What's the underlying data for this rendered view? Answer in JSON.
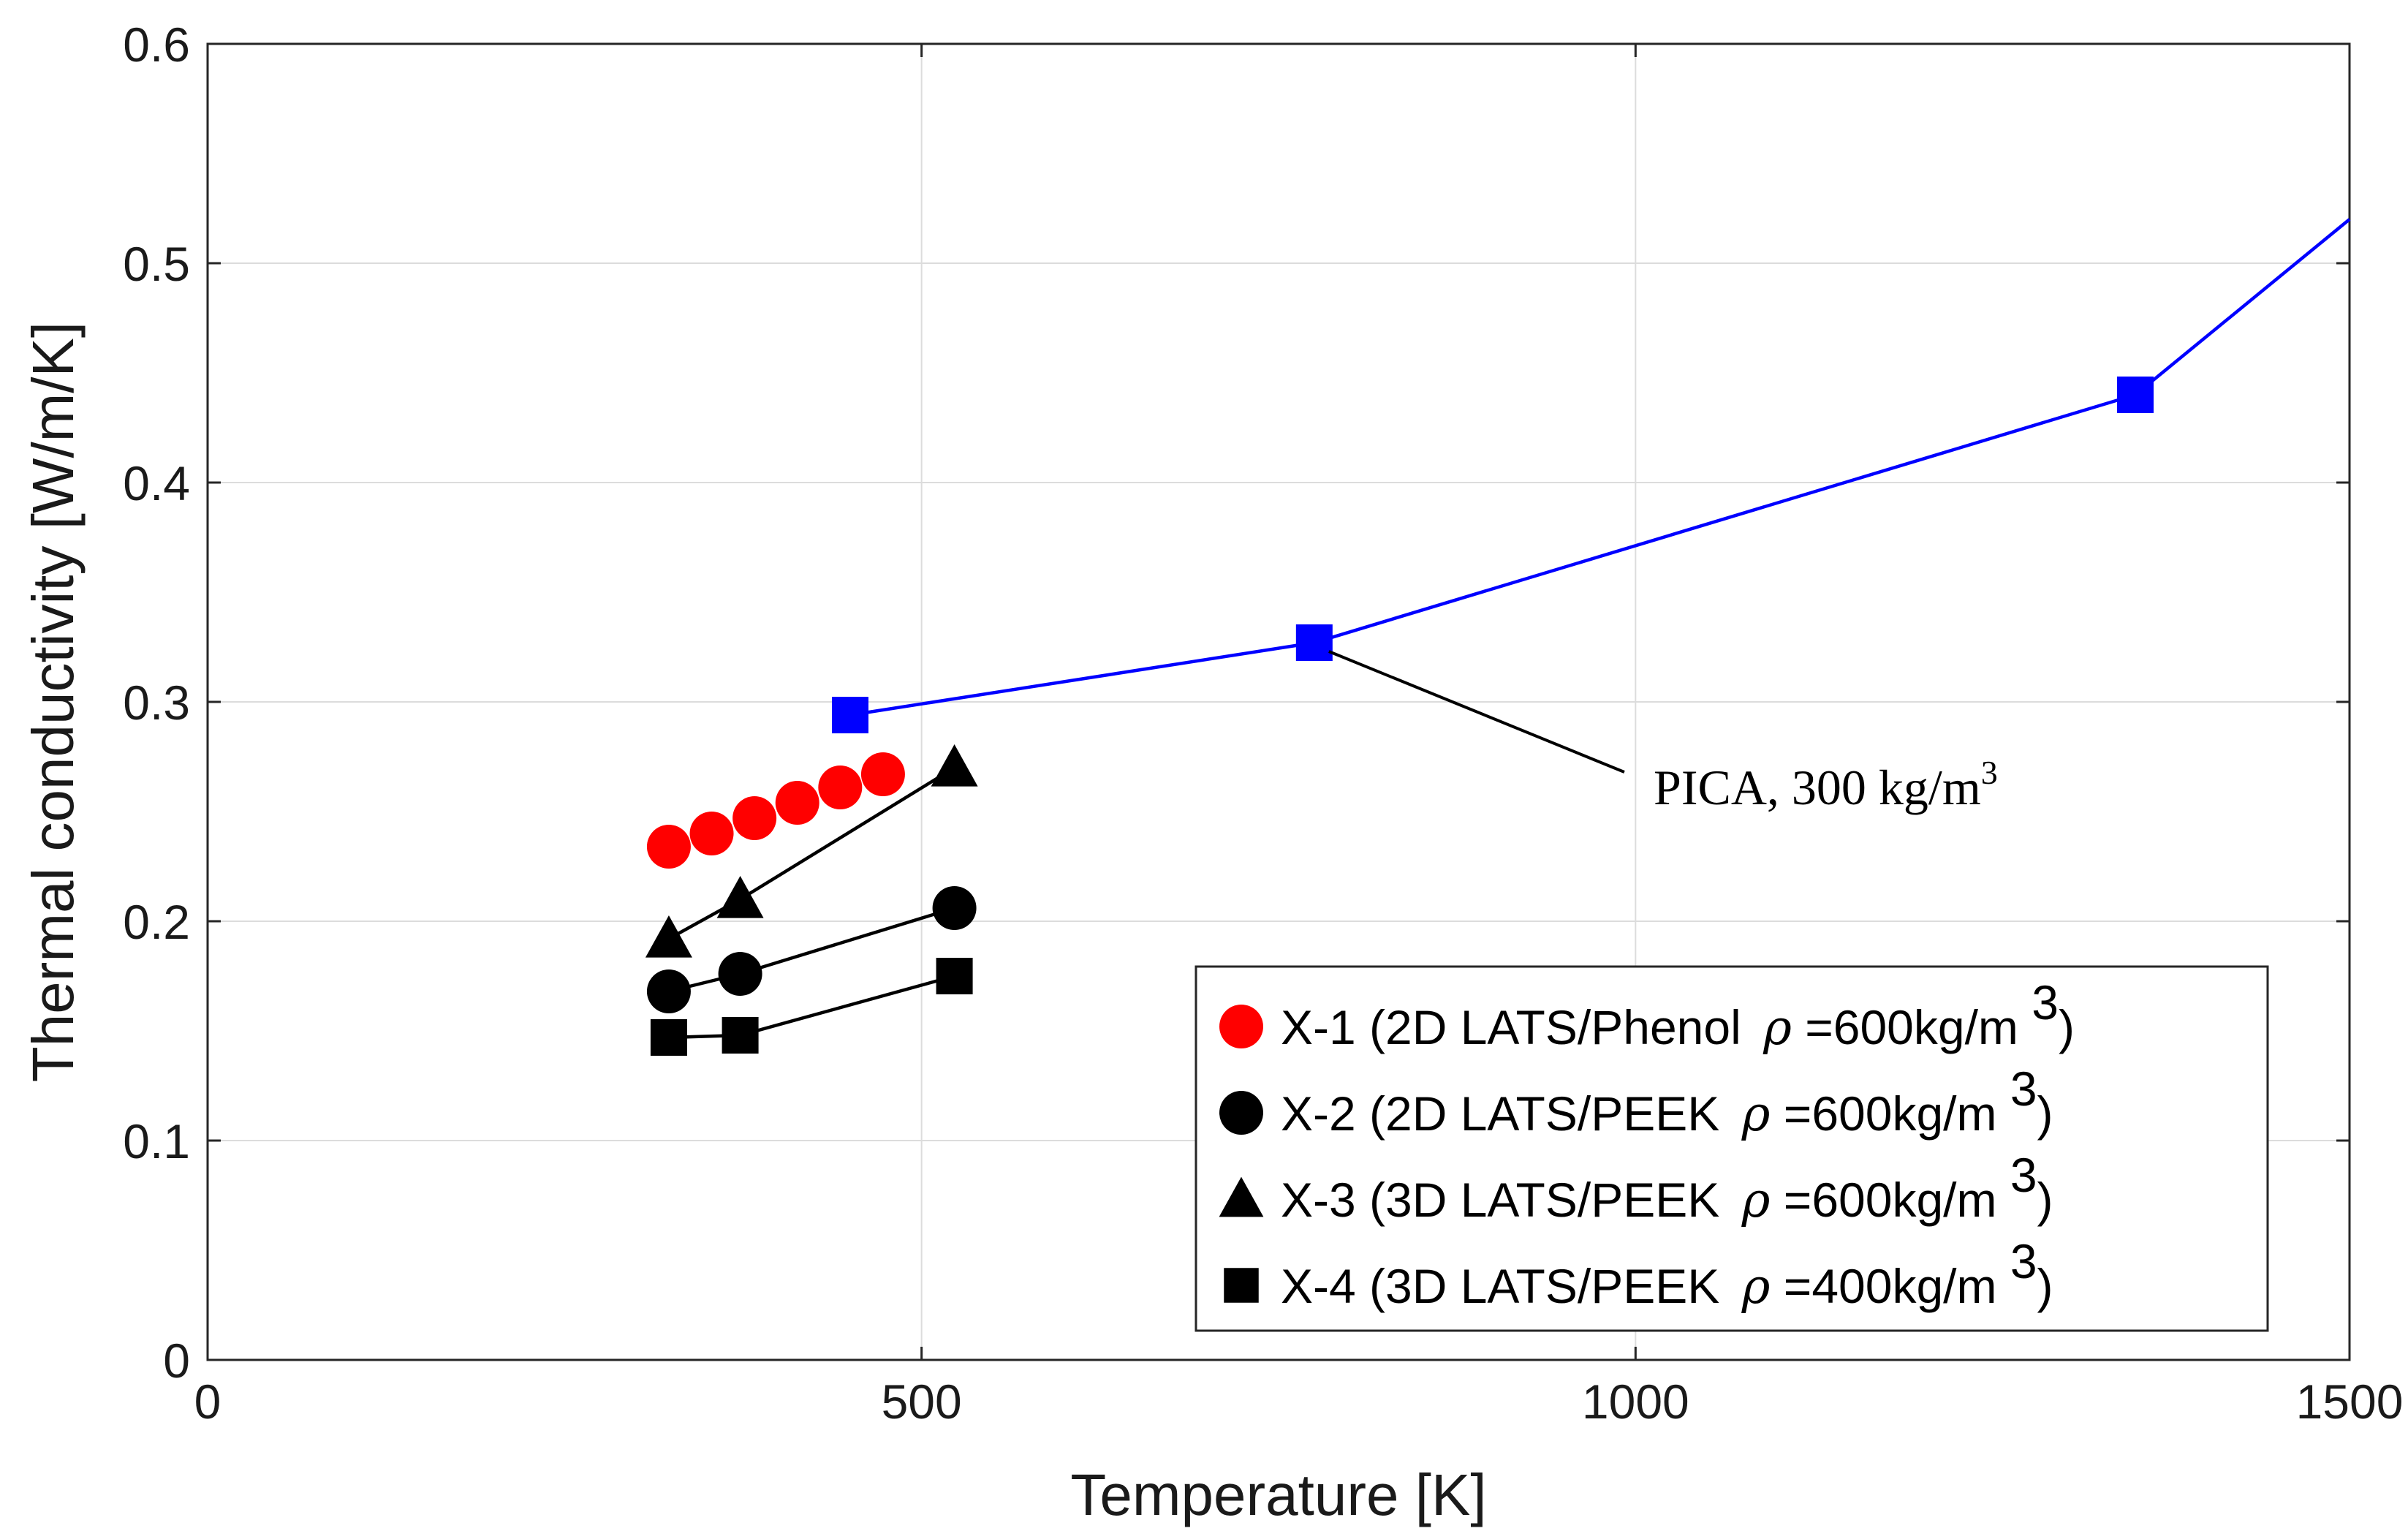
{
  "chart_data": {
    "type": "line",
    "xlabel": "Temperature [K]",
    "ylabel": "Thermal conductivity [W/m/K]",
    "xlim": [
      0,
      1500
    ],
    "ylim": [
      0,
      0.6
    ],
    "x_ticks": [
      0,
      500,
      1000,
      1500
    ],
    "y_ticks": [
      0,
      0.1,
      0.2,
      0.3,
      0.4,
      0.5,
      0.6
    ],
    "x_tick_labels": [
      "0",
      "500",
      "1000",
      "1500"
    ],
    "y_tick_labels": [
      "0",
      "0.1",
      "0.2",
      "0.3",
      "0.4",
      "0.5",
      "0.6"
    ],
    "grid": true,
    "legend_position": "bottom-right",
    "series": [
      {
        "name": "X-1",
        "legend_prefix": "X-1 (2D LATS/Phenol",
        "legend_rho": "ρ",
        "legend_value": "=600kg/m",
        "legend_exp": "3",
        "legend_close": ")",
        "marker": "circle",
        "color": "#ff0000",
        "line": false,
        "x": [
          323,
          353,
          383,
          413,
          443,
          473
        ],
        "y": [
          0.234,
          0.24,
          0.247,
          0.254,
          0.261,
          0.267
        ]
      },
      {
        "name": "X-2",
        "legend_prefix": "X-2 (2D LATS/PEEK",
        "legend_rho": "ρ",
        "legend_value": "=600kg/m",
        "legend_exp": "3",
        "legend_close": ")",
        "marker": "circle",
        "color": "#000000",
        "line": true,
        "x": [
          323,
          373,
          523
        ],
        "y": [
          0.168,
          0.176,
          0.206
        ]
      },
      {
        "name": "X-3",
        "legend_prefix": "X-3 (3D LATS/PEEK",
        "legend_rho": "ρ",
        "legend_value": "=600kg/m",
        "legend_exp": "3",
        "legend_close": ")",
        "marker": "triangle",
        "color": "#000000",
        "line": true,
        "x": [
          323,
          373,
          523
        ],
        "y": [
          0.192,
          0.21,
          0.27
        ]
      },
      {
        "name": "X-4",
        "legend_prefix": "X-4 (3D LATS/PEEK",
        "legend_rho": "ρ",
        "legend_value": "=400kg/m",
        "legend_exp": "3",
        "legend_close": ")",
        "marker": "square",
        "color": "#000000",
        "line": true,
        "x": [
          323,
          373,
          523
        ],
        "y": [
          0.147,
          0.148,
          0.175
        ]
      },
      {
        "name": "PICA",
        "marker": "square",
        "color": "#0000ff",
        "line": true,
        "in_legend": false,
        "x": [
          450,
          775,
          1350,
          1500
        ],
        "y": [
          0.294,
          0.327,
          0.44,
          0.52
        ],
        "marker_count": 3
      }
    ],
    "annotation": {
      "text": "PICA, 300 kg/m",
      "superscript": "3",
      "points_to_series": "PICA",
      "points_to_x": 775,
      "points_to_y": 0.327
    }
  }
}
